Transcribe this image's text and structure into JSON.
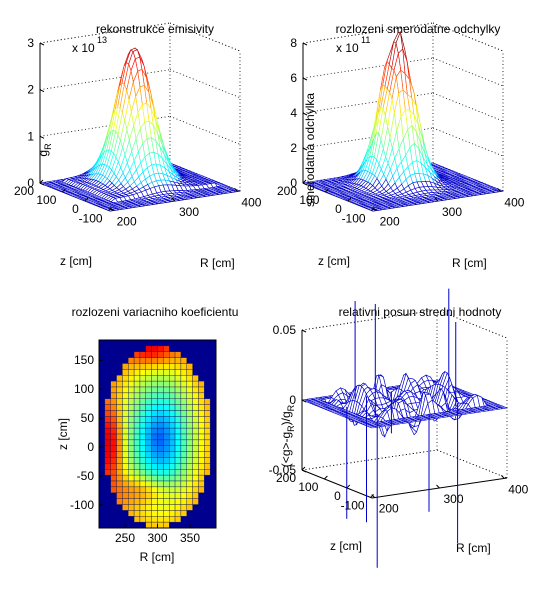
{
  "chart_data": [
    {
      "type": "surface",
      "title": "rekonstrukce emisivity",
      "zlabel_main": "g",
      "zlabel_sub": "R",
      "xlabel": "R [cm]",
      "ylabel": "z [cm]",
      "multiplier_base": "x 10",
      "multiplier_exp": "13",
      "zticks": [
        "0",
        "1",
        "2",
        "3"
      ],
      "zlim": [
        0,
        3
      ],
      "xticks": [
        "200",
        "300",
        "400"
      ],
      "yticks": [
        "-100",
        "0",
        "100",
        "200"
      ],
      "peak": 2.85
    },
    {
      "type": "surface",
      "title": "rozlozeni smerodatne odchylky",
      "zlabel": "smerodatna odchylka",
      "xlabel": "R [cm]",
      "ylabel": "z [cm]",
      "multiplier_base": "x 10",
      "multiplier_exp": "11",
      "zticks": [
        "0",
        "2",
        "4",
        "6",
        "8"
      ],
      "zlim": [
        0,
        8
      ],
      "xticks": [
        "200",
        "300",
        "400"
      ],
      "yticks": [
        "-100",
        "0",
        "100",
        "200"
      ],
      "peak": 8.2
    },
    {
      "type": "heatmap",
      "title": "rozlozeni variacniho koeficientu",
      "xlabel": "R [cm]",
      "ylabel": "z [cm]",
      "xticks": [
        "250",
        "300",
        "350"
      ],
      "xtick_values": [
        250,
        300,
        350
      ],
      "yticks": [
        "150",
        "100",
        "50",
        "0",
        "-50",
        "-100"
      ],
      "ytick_values": [
        150,
        100,
        50,
        0,
        -50,
        -100
      ],
      "xlim": [
        210,
        390
      ],
      "ylim": [
        -140,
        185
      ]
    },
    {
      "type": "surface",
      "title": "relativni posun stredni hodnoty",
      "zlabel": "(<g>-g",
      "zlabel_sub": "R",
      "zlabel_tail": ")/g",
      "zlabel_sub2": "R",
      "xlabel": "R [cm]",
      "ylabel": "z [cm]",
      "zticks": [
        "-0.05",
        "0",
        "0.05"
      ],
      "zlim": [
        -0.05,
        0.05
      ],
      "xticks": [
        "200",
        "300",
        "400"
      ],
      "yticks": [
        "-100",
        "0",
        "100",
        "200"
      ]
    }
  ],
  "colors": {
    "mesh": "#0000cc",
    "heat_bg": "#00008f"
  }
}
